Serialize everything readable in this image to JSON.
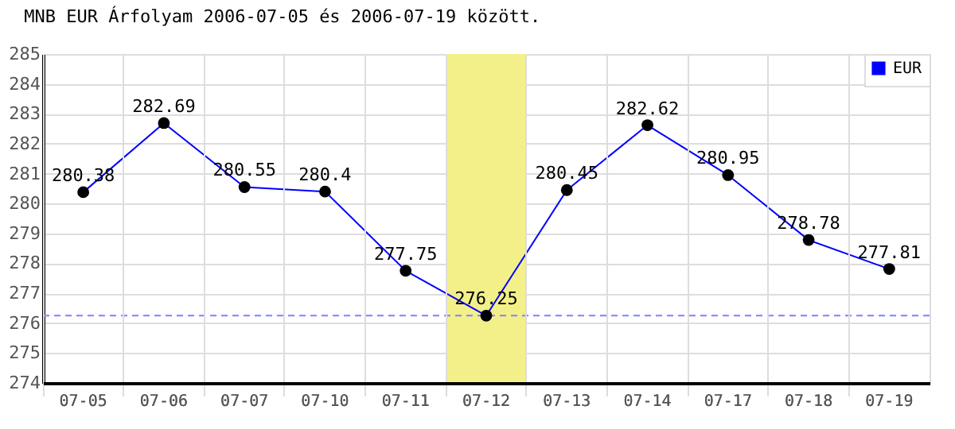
{
  "chart_data": {
    "type": "line",
    "title": "MNB EUR Árfolyam 2006-07-05 és 2006-07-19 között.",
    "categories": [
      "07-05",
      "07-06",
      "07-07",
      "07-10",
      "07-11",
      "07-12",
      "07-13",
      "07-14",
      "07-17",
      "07-18",
      "07-19"
    ],
    "series": [
      {
        "name": "EUR",
        "color": "#0000ff",
        "values": [
          280.38,
          282.69,
          280.55,
          280.4,
          277.75,
          276.25,
          280.45,
          282.62,
          280.95,
          278.78,
          277.81
        ]
      }
    ],
    "ylim": [
      274,
      285
    ],
    "yticks": [
      274,
      275,
      276,
      277,
      278,
      279,
      280,
      281,
      282,
      283,
      284,
      285
    ],
    "ref_lines": [
      {
        "axis": "y",
        "value": 276.25,
        "color": "#8080ff",
        "line_style": "dashed"
      }
    ],
    "bands": [
      {
        "axis": "x",
        "from": "07-12",
        "to": "07-12",
        "color": "#f3f08a"
      }
    ],
    "data_labels": true,
    "grid": true,
    "legend": "top right",
    "marker": "circle",
    "line_style": "solid"
  }
}
